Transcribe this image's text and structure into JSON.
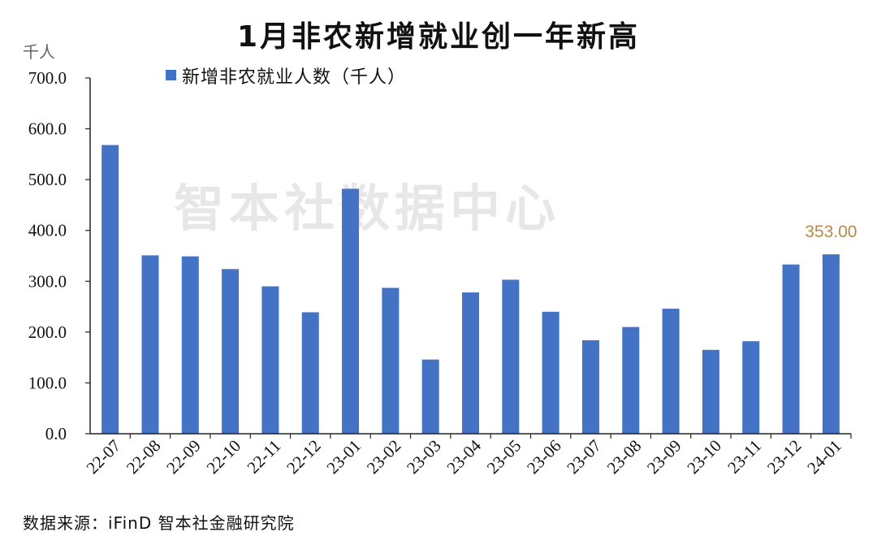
{
  "chart_data": {
    "type": "bar",
    "title": "1月非农新增就业创一年新高",
    "unit_label": "千人",
    "series": [
      {
        "name": "新增非农就业人数（千人）",
        "values": [
          568,
          351,
          349,
          324,
          290,
          239,
          482,
          287,
          146,
          278,
          303,
          240,
          184,
          210,
          246,
          165,
          182,
          333,
          353
        ]
      }
    ],
    "categories": [
      "22-07",
      "22-08",
      "22-09",
      "22-10",
      "22-11",
      "22-12",
      "23-01",
      "23-02",
      "23-03",
      "23-04",
      "23-05",
      "23-06",
      "23-07",
      "23-08",
      "23-09",
      "23-10",
      "23-11",
      "23-12",
      "24-01"
    ],
    "ylim": [
      0,
      700
    ],
    "yticks": [
      "0.0",
      "100.0",
      "200.0",
      "300.0",
      "400.0",
      "500.0",
      "600.0",
      "700.0"
    ],
    "data_label": {
      "category": "24-01",
      "text": "353.00"
    },
    "legend_position": "top",
    "grid": false,
    "bar_color": "#4472c4",
    "label_color": "#b8884a"
  },
  "watermark": "智本社数据中心",
  "source": "数据来源：iFinD 智本社金融研究院"
}
